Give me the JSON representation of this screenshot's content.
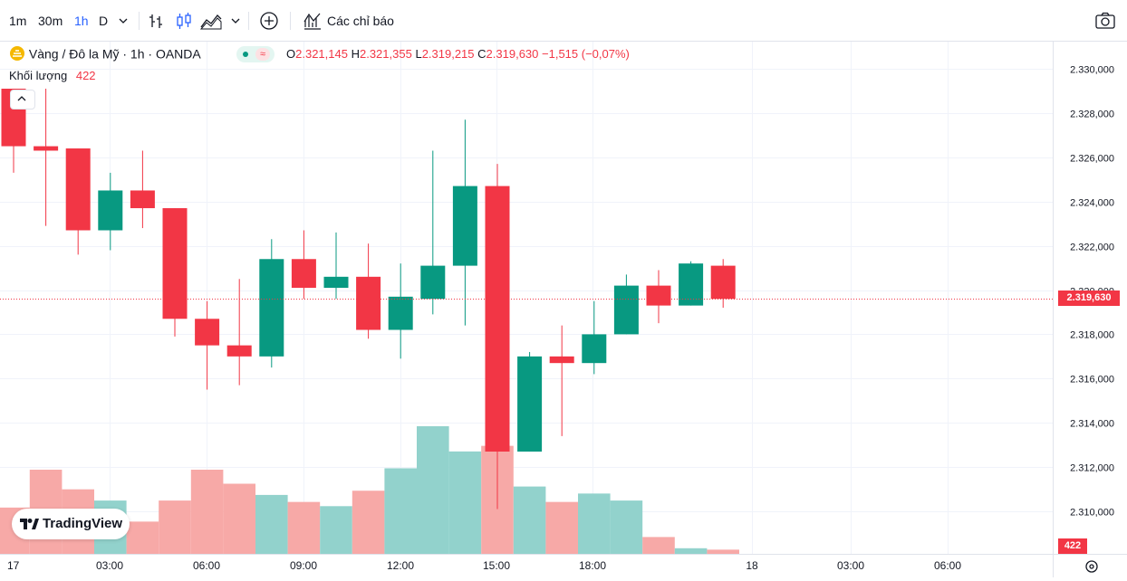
{
  "toolbar": {
    "intervals": [
      "1m",
      "30m",
      "1h",
      "D"
    ],
    "active_interval": "1h",
    "indicators_label": "Các chỉ báo"
  },
  "legend": {
    "symbol": "Vàng / Đô la Mỹ · 1h · OANDA",
    "o_label": "O",
    "o_value": "2.321,145",
    "h_label": "H",
    "h_value": "2.321,355",
    "l_label": "L",
    "l_value": "2.319,215",
    "c_label": "C",
    "c_value": "2.319,630",
    "change": "−1,515 (−0,07%)",
    "volume_label": "Khối lượng",
    "volume_value": "422"
  },
  "logo_text": "TradingView",
  "last_price_label": "2.319,630",
  "last_volume_label": "422",
  "colors": {
    "up": "#089981",
    "down": "#f23645",
    "up_vol": "#92d2cc",
    "down_vol": "#f7a9a7",
    "grid": "#f0f3fa"
  },
  "chart_data": {
    "type": "candlestick",
    "y_ticks": [
      2310,
      2312,
      2314,
      2316,
      2318,
      2320,
      2322,
      2324,
      2326,
      2328,
      2330
    ],
    "y_tick_labels": [
      "2.310,000",
      "2.312,000",
      "2.314,000",
      "2.316,000",
      "2.318,000",
      "2.320,000",
      "2.322,000",
      "2.324,000",
      "2.326,000",
      "2.328,000",
      "2.330,000"
    ],
    "x_tick_labels": [
      "17",
      "03:00",
      "06:00",
      "09:00",
      "12:00",
      "15:00",
      "18:00",
      "18",
      "03:00",
      "06:00"
    ],
    "candles": [
      {
        "o": 2329.1,
        "h": 2329.1,
        "l": 2325.3,
        "c": 2326.5
      },
      {
        "o": 2326.5,
        "h": 2329.1,
        "l": 2322.9,
        "c": 2326.3
      },
      {
        "o": 2326.4,
        "h": 2326.4,
        "l": 2321.6,
        "c": 2322.7
      },
      {
        "o": 2322.7,
        "h": 2325.3,
        "l": 2321.8,
        "c": 2324.5
      },
      {
        "o": 2324.5,
        "h": 2326.3,
        "l": 2322.8,
        "c": 2323.7
      },
      {
        "o": 2323.7,
        "h": 2323.7,
        "l": 2317.9,
        "c": 2318.7
      },
      {
        "o": 2318.7,
        "h": 2319.5,
        "l": 2315.5,
        "c": 2317.5
      },
      {
        "o": 2317.5,
        "h": 2320.5,
        "l": 2315.7,
        "c": 2317.0
      },
      {
        "o": 2317.0,
        "h": 2322.3,
        "l": 2316.5,
        "c": 2321.4
      },
      {
        "o": 2321.4,
        "h": 2322.7,
        "l": 2319.6,
        "c": 2320.1
      },
      {
        "o": 2320.1,
        "h": 2322.6,
        "l": 2319.6,
        "c": 2320.6
      },
      {
        "o": 2320.6,
        "h": 2322.1,
        "l": 2317.8,
        "c": 2318.2
      },
      {
        "o": 2318.2,
        "h": 2321.2,
        "l": 2316.9,
        "c": 2319.7
      },
      {
        "o": 2319.6,
        "h": 2326.3,
        "l": 2318.9,
        "c": 2321.1
      },
      {
        "o": 2321.1,
        "h": 2327.7,
        "l": 2318.4,
        "c": 2324.7
      },
      {
        "o": 2324.7,
        "h": 2325.7,
        "l": 2310.1,
        "c": 2312.7
      },
      {
        "o": 2312.7,
        "h": 2317.2,
        "l": 2312.7,
        "c": 2317.0
      },
      {
        "o": 2317.0,
        "h": 2318.4,
        "l": 2313.4,
        "c": 2316.7
      },
      {
        "o": 2316.7,
        "h": 2319.5,
        "l": 2316.2,
        "c": 2318.0
      },
      {
        "o": 2318.0,
        "h": 2320.7,
        "l": 2318.0,
        "c": 2320.2
      },
      {
        "o": 2320.2,
        "h": 2320.9,
        "l": 2318.5,
        "c": 2319.3
      },
      {
        "o": 2319.3,
        "h": 2321.3,
        "l": 2319.3,
        "c": 2321.2
      },
      {
        "o": 2321.1,
        "h": 2321.4,
        "l": 2319.2,
        "c": 2319.6
      }
    ],
    "volumes": [
      0.33,
      0.6,
      0.46,
      0.38,
      0.23,
      0.38,
      0.6,
      0.5,
      0.42,
      0.37,
      0.34,
      0.45,
      0.61,
      0.91,
      0.73,
      0.77,
      0.48,
      0.37,
      0.43,
      0.38,
      0.12,
      0.04,
      0.03
    ],
    "last_price": 2319.63
  }
}
